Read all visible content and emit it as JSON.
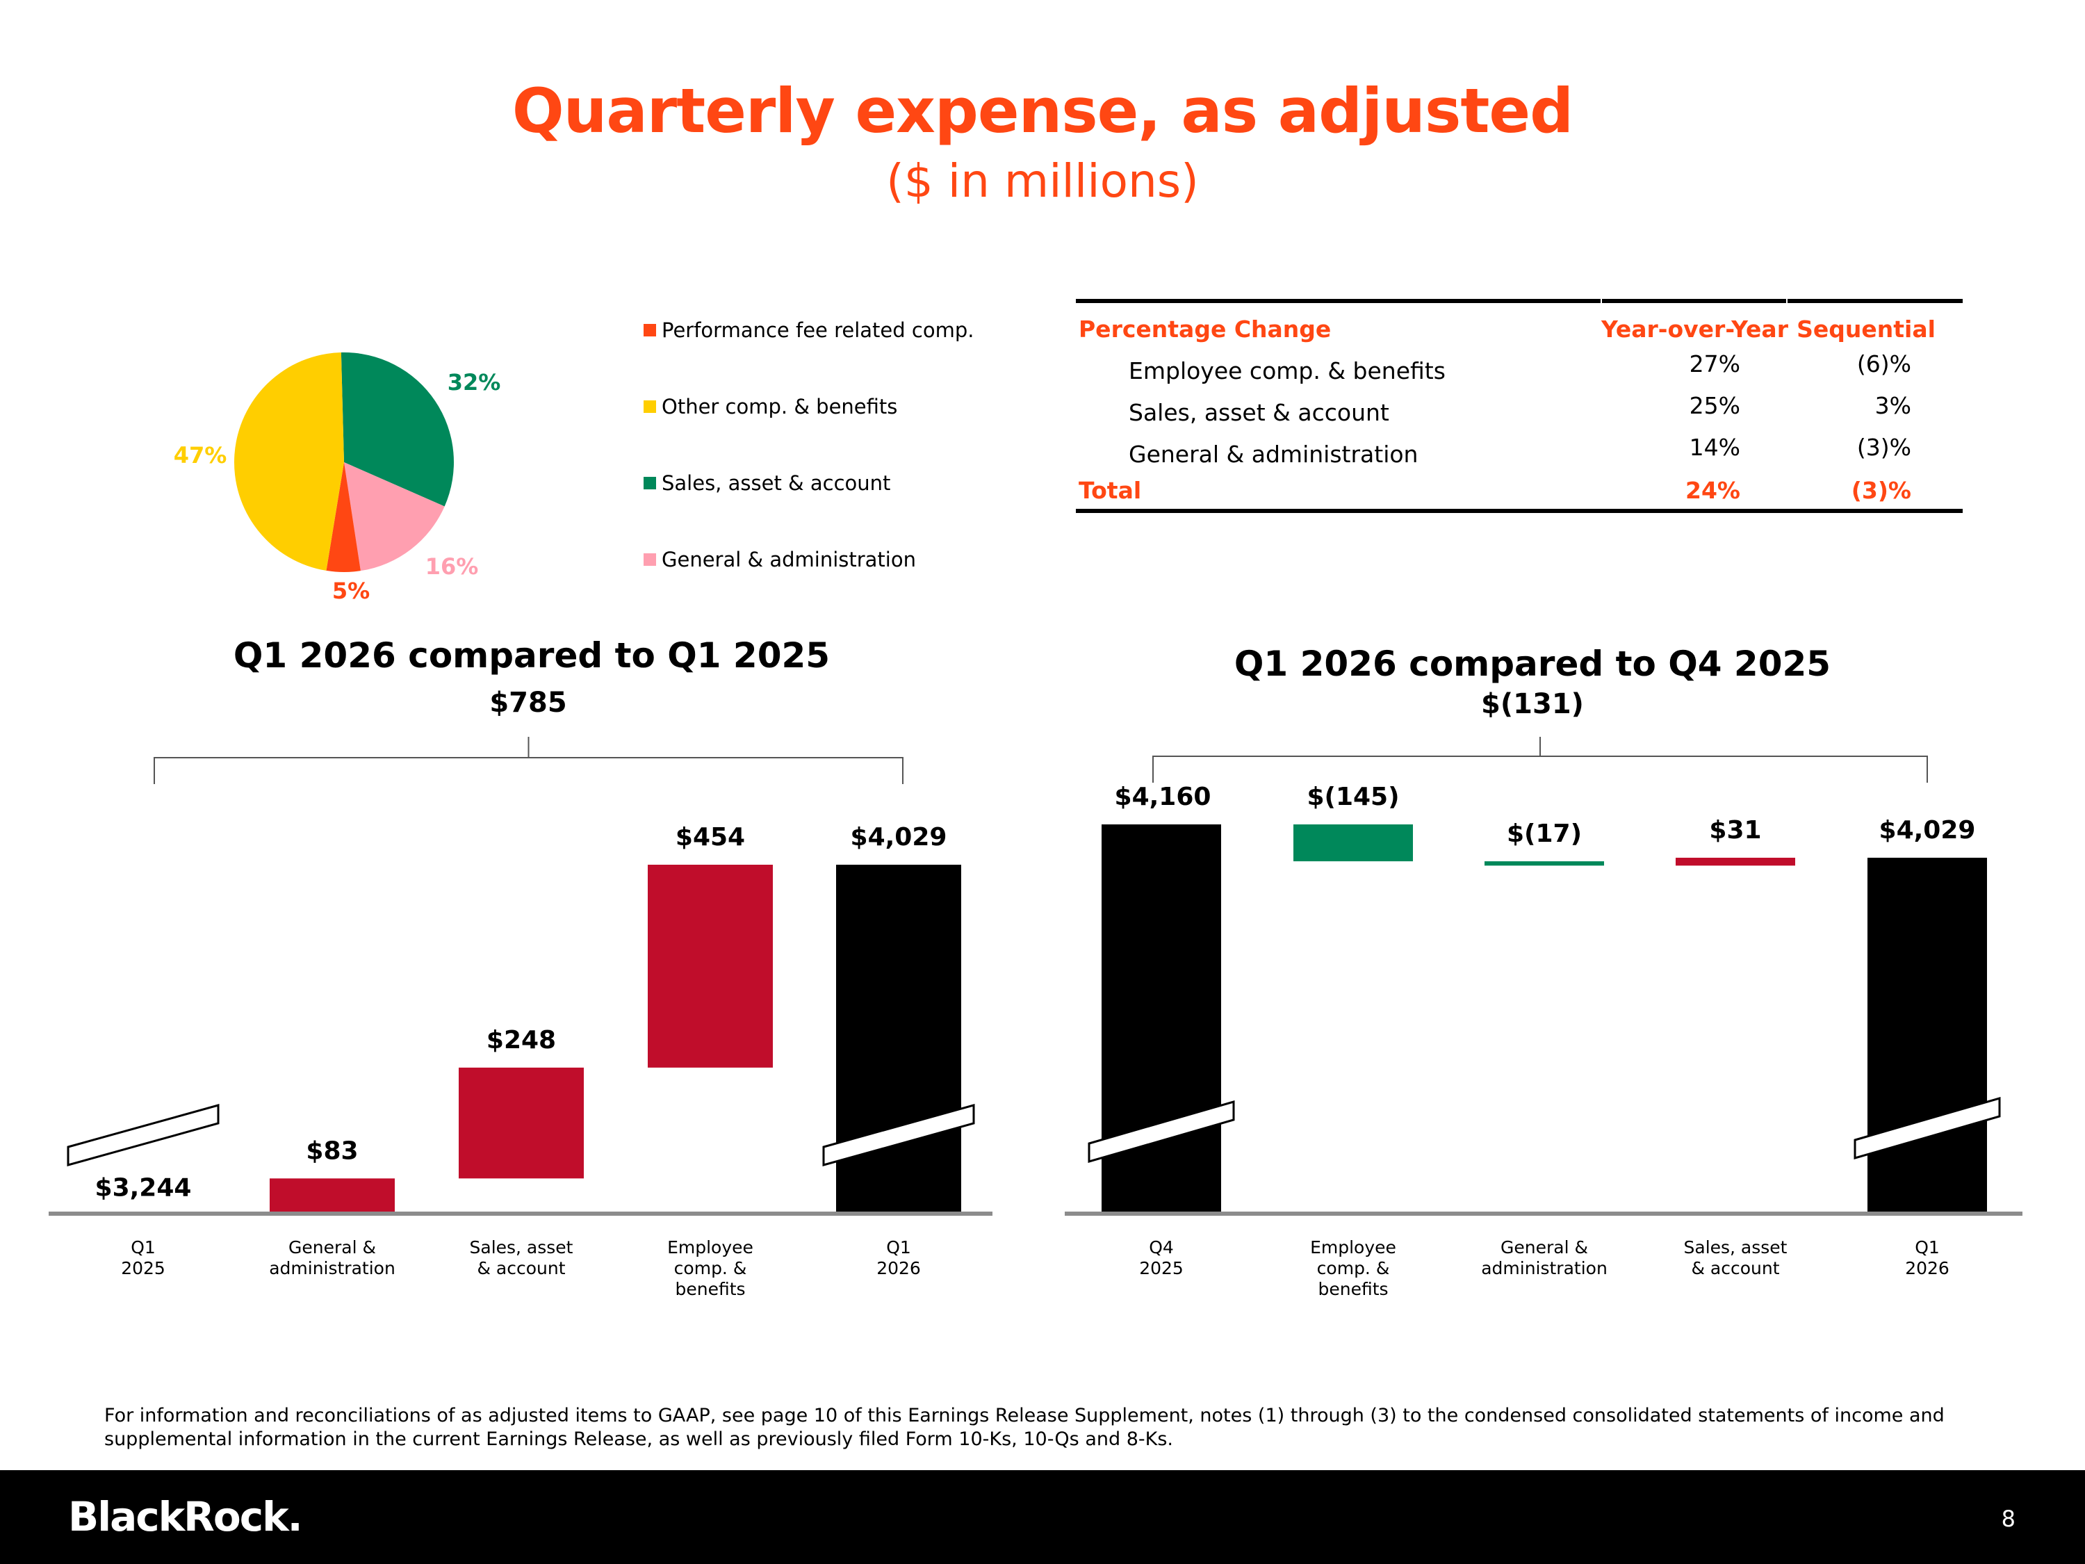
{
  "title": "Quarterly expense, as adjusted",
  "subtitle": "($ in millions)",
  "footnote": "For information and reconciliations of as adjusted items to GAAP, see page 10 of this Earnings Release Supplement, notes (1) through (3) to the condensed consolidated statements of income and supplemental information in the current Earnings Release, as well as previously filed Form 10-Ks, 10-Qs and 8-Ks.",
  "footer": {
    "logo": "BlackRock.",
    "page_number": "8"
  },
  "colors": {
    "accent": "#ff4713",
    "increase": "#c00d2b",
    "decrease": "#00885a",
    "total_bar": "#000000",
    "perf_fee": "#ff4713",
    "other_comp": "#ffce00",
    "sales_asset": "#00885a",
    "general_admin": "#ff9fb0"
  },
  "table": {
    "headers": [
      "Percentage Change",
      "Year-over-Year",
      "Sequential"
    ],
    "rows": [
      {
        "label": "Employee comp. & benefits",
        "yoy": "27%",
        "seq": "(6)%"
      },
      {
        "label": "Sales, asset & account",
        "yoy": "25%",
        "seq": "3%"
      },
      {
        "label": "General & administration",
        "yoy": "14%",
        "seq": "(3)%"
      }
    ],
    "total": {
      "label": "Total",
      "yoy": "24%",
      "seq": "(3)%"
    }
  },
  "chart_data": [
    {
      "type": "pie",
      "slices": [
        {
          "name": "Performance fee related comp.",
          "value": 5,
          "label": "5%",
          "color": "#ff4713"
        },
        {
          "name": "Other comp. & benefits",
          "value": 47,
          "label": "47%",
          "color": "#ffce00"
        },
        {
          "name": "Sales, asset & account",
          "value": 32,
          "label": "32%",
          "color": "#00885a"
        },
        {
          "name": "General & administration",
          "value": 16,
          "label": "16%",
          "color": "#ff9fb0"
        }
      ],
      "legend": [
        "Performance fee related comp.",
        "Other comp. & benefits",
        "Sales, asset & account",
        "General & administration"
      ],
      "legend_position": "right"
    },
    {
      "type": "bar",
      "subtype": "waterfall",
      "title": "Q1 2026 compared to Q1 2025",
      "total_change_label": "$785",
      "categories": [
        [
          "Q1",
          "2025"
        ],
        [
          "General &",
          "administration"
        ],
        [
          "Sales, asset",
          "& account"
        ],
        [
          "Employee",
          "comp. &",
          "benefits"
        ],
        [
          "Q1",
          "2026"
        ]
      ],
      "values": [
        3244,
        83,
        248,
        454,
        4029
      ],
      "value_labels": [
        "$3,244",
        "$83",
        "$248",
        "$454",
        "$4,029"
      ],
      "kinds": [
        "total",
        "delta",
        "delta",
        "delta",
        "total"
      ],
      "axis_break": true
    },
    {
      "type": "bar",
      "subtype": "waterfall",
      "title": "Q1 2026 compared to Q4 2025",
      "total_change_label": "$(131)",
      "categories": [
        [
          "Q4",
          "2025"
        ],
        [
          "Employee",
          "comp. &",
          "benefits"
        ],
        [
          "General &",
          "administration"
        ],
        [
          "Sales, asset",
          "& account"
        ],
        [
          "Q1",
          "2026"
        ]
      ],
      "values": [
        4160,
        -145,
        -17,
        31,
        4029
      ],
      "value_labels": [
        "$4,160",
        "$(145)",
        "$(17)",
        "$31",
        "$4,029"
      ],
      "kinds": [
        "total",
        "delta",
        "delta",
        "delta",
        "total"
      ],
      "axis_break": true
    }
  ]
}
